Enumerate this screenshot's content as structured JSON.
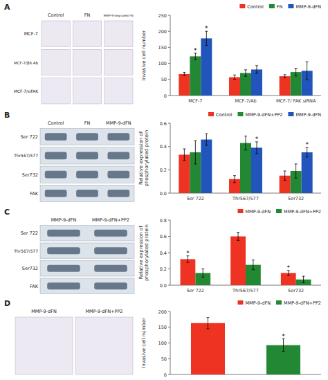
{
  "chart_data": [
    {
      "type": "bar",
      "title": "A",
      "categories": [
        "MCF-7",
        "MCF-7/Ab",
        "MCF-7/ FAK siRNA"
      ],
      "series": [
        {
          "name": "Control",
          "color": "#ee3322",
          "values": [
            67,
            57,
            60
          ],
          "errors": [
            5,
            7,
            5
          ]
        },
        {
          "name": "FN",
          "color": "#228833",
          "values": [
            122,
            70,
            73
          ],
          "errors": [
            10,
            10,
            12
          ]
        },
        {
          "name": "MMP-9-dFN",
          "color": "#2255bb",
          "values": [
            178,
            81,
            77
          ],
          "errors": [
            22,
            12,
            28
          ]
        }
      ],
      "ylabel": "Invasive cell number",
      "ylim": [
        0,
        250
      ],
      "yticks": [
        0,
        50,
        100,
        150,
        200,
        250
      ],
      "grid": false,
      "legend": "upper right",
      "annotations": [
        {
          "text": "*",
          "category": "MCF-7",
          "series": "FN"
        },
        {
          "text": "*",
          "category": "MCF-7",
          "series": "MMP-9-dFN"
        }
      ],
      "image_columns": [
        "Control",
        "FN",
        "MMP-9-degraded FN"
      ],
      "image_rows": [
        "MCF-7",
        "MCF-7/β6 Ab",
        "MCF-7/siFAK"
      ]
    },
    {
      "type": "bar",
      "title": "B",
      "categories": [
        "Ser 722",
        "Thr567/577",
        "Ser732"
      ],
      "series": [
        {
          "name": "Control",
          "color": "#ee3322",
          "values": [
            0.33,
            0.12,
            0.15
          ],
          "errors": [
            0.05,
            0.03,
            0.04
          ]
        },
        {
          "name": "MMP-9-dFN+PP2",
          "color": "#228833",
          "values": [
            0.35,
            0.43,
            0.19
          ],
          "errors": [
            0.1,
            0.06,
            0.06
          ]
        },
        {
          "name": "MMP-9-dFN",
          "color": "#2255bb",
          "values": [
            0.46,
            0.39,
            0.35
          ],
          "errors": [
            0.05,
            0.05,
            0.04
          ]
        }
      ],
      "ylabel": "Relative expression of\nphosphorylated protein",
      "ylim": [
        0,
        0.6
      ],
      "yticks": [
        {
          "value": 0,
          "label": "0.0"
        },
        0.2,
        0.4,
        0.6
      ],
      "grid": false,
      "legend": "upper right",
      "annotations": [
        {
          "text": "*",
          "category": "Thr567/577",
          "series": "MMP-9-dFN"
        },
        {
          "text": "*",
          "category": "Ser732",
          "series": "MMP-9-dFN"
        }
      ],
      "blot_columns": [
        "Control",
        "FN",
        "MMP-9-dFN"
      ],
      "blot_rows": [
        "Ser 722",
        "Thr567/577",
        "Ser732",
        "FAK"
      ]
    },
    {
      "type": "bar",
      "title": "C",
      "categories": [
        "Ser 722",
        "Thr567/577",
        "Ser732"
      ],
      "series": [
        {
          "name": "MMP-9-dFN",
          "color": "#ee3322",
          "values": [
            0.32,
            0.6,
            0.15
          ],
          "errors": [
            0.04,
            0.05,
            0.03
          ]
        },
        {
          "name": "MMP-9-dFN+PP2",
          "color": "#228833",
          "values": [
            0.15,
            0.25,
            0.07
          ],
          "errors": [
            0.05,
            0.06,
            0.04
          ]
        }
      ],
      "ylabel": "Relative expression of\nphosphorylated protein",
      "ylim": [
        0,
        0.8
      ],
      "yticks": [
        {
          "value": 0,
          "label": "0.0"
        },
        0.2,
        0.4,
        0.6,
        0.8
      ],
      "grid": false,
      "legend": "upper right",
      "annotations": [
        {
          "text": "*",
          "category": "Ser 722",
          "series": "MMP-9-dFN"
        },
        {
          "text": "*",
          "category": "Ser732",
          "series": "MMP-9-dFN"
        }
      ],
      "blot_columns": [
        "MMP-9-dFN",
        "MMP-9-dFN+PP2"
      ],
      "blot_rows": [
        "Ser 722",
        "Thr567/577",
        "Ser732",
        "FAK"
      ]
    },
    {
      "type": "bar",
      "title": "D",
      "categories": [
        "MMP-9-dFN",
        "MMP-9-dFN+PP2"
      ],
      "values": [
        163,
        93
      ],
      "errors": [
        18,
        20
      ],
      "colors": [
        "#ee3322",
        "#228833"
      ],
      "ylabel": "Invasive cell number",
      "ylim": [
        0,
        200
      ],
      "yticks": [
        0,
        50,
        100,
        150,
        200
      ],
      "grid": false,
      "legend": "upper right",
      "tick_labels": "y",
      "annotations": [
        {
          "text": "*",
          "category": "MMP-9-dFN+PP2"
        }
      ],
      "image_columns": [
        "MMP-9-dFN",
        "MMP-9-dFN+PP2"
      ]
    }
  ]
}
